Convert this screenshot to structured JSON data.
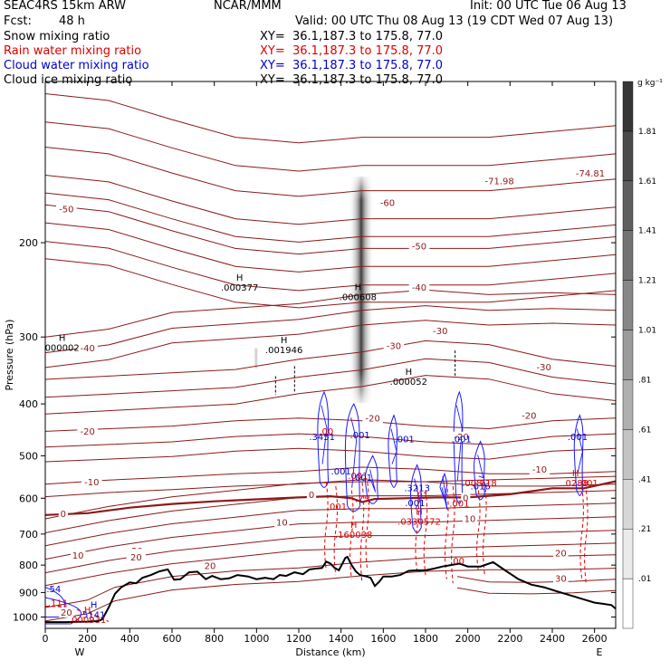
{
  "header": {
    "model": "SEAC4RS 15km ARW",
    "org": "NCAR/MMM",
    "init": "Init: 00 UTC Tue 06 Aug 13",
    "fcst_label": "Fcst:",
    "fcst_value": "48 h",
    "valid": "Valid: 00 UTC Thu 08 Aug 13 (19 CDT Wed 07 Aug 13)",
    "fields": [
      {
        "name": "Snow mixing ratio",
        "xy": "XY=  36.1,187.3 to 175.8, 77.0",
        "color": "#000000"
      },
      {
        "name": "Rain water mixing ratio",
        "xy": "XY=  36.1,187.3 to 175.8, 77.0",
        "color": "#dd0000"
      },
      {
        "name": "Cloud water mixing ratio",
        "xy": "XY=  36.1,187.3 to 175.8, 77.0",
        "color": "#0000cc"
      },
      {
        "name": "Cloud ice mixing ratio",
        "xy": "XY=  36.1,187.3 to 175.8, 77.0",
        "color": "#000000"
      }
    ]
  },
  "chart_data": {
    "type": "cross-section",
    "xlabel": "Distance (km)",
    "ylabel": "Pressure (hPa)",
    "xlim": [
      0,
      2700
    ],
    "x_ticks": [
      0,
      200,
      400,
      600,
      800,
      1000,
      1200,
      1400,
      1600,
      1800,
      2000,
      2200,
      2400,
      2600
    ],
    "ylim": [
      1050,
      100
    ],
    "y_scale": "log",
    "y_ticks": [
      200,
      300,
      400,
      500,
      600,
      700,
      800,
      900,
      1000
    ],
    "endpoint_left": "W",
    "endpoint_right": "E",
    "colorbar": {
      "unit": "g kg⁻¹",
      "levels": [
        ".01",
        ".21",
        ".41",
        ".61",
        ".81",
        "1.01",
        "1.21",
        "1.41",
        "1.61",
        "1.81"
      ]
    },
    "temperature_contours_C": [
      -50,
      -40,
      -30,
      -20,
      -10,
      0,
      10,
      20,
      30
    ],
    "temperature_labels": [
      {
        "text": "-71.98",
        "x": 2150,
        "p": 155
      },
      {
        "text": "-74.81",
        "x": 2580,
        "p": 150
      },
      {
        "text": "-50",
        "x": 100,
        "p": 175
      },
      {
        "text": "-60",
        "x": 1620,
        "p": 170
      },
      {
        "text": "-50",
        "x": 1770,
        "p": 205
      },
      {
        "text": "-40",
        "x": 1770,
        "p": 245
      },
      {
        "text": "-40",
        "x": 200,
        "p": 318
      },
      {
        "text": "-30",
        "x": 1650,
        "p": 315
      },
      {
        "text": "-30",
        "x": 1870,
        "p": 295
      },
      {
        "text": "-30",
        "x": 2360,
        "p": 345
      },
      {
        "text": "-20",
        "x": 200,
        "p": 455
      },
      {
        "text": "-20",
        "x": 1550,
        "p": 430
      },
      {
        "text": "-20",
        "x": 1970,
        "p": 465
      },
      {
        "text": "-20",
        "x": 2290,
        "p": 425
      },
      {
        "text": "-10",
        "x": 220,
        "p": 565
      },
      {
        "text": "-10",
        "x": 2340,
        "p": 535
      },
      {
        "text": "0",
        "x": 1260,
        "p": 597
      },
      {
        "text": "0",
        "x": 85,
        "p": 648
      },
      {
        "text": "0",
        "x": 1990,
        "p": 605
      },
      {
        "text": "10",
        "x": 1120,
        "p": 673
      },
      {
        "text": "10",
        "x": 2010,
        "p": 662
      },
      {
        "text": "10",
        "x": 155,
        "p": 775
      },
      {
        "text": "20",
        "x": 780,
        "p": 810
      },
      {
        "text": "20",
        "x": 435,
        "p": 758
      },
      {
        "text": "20",
        "x": 440,
        "p": 790
      },
      {
        "text": "20",
        "x": 430,
        "p": 776
      },
      {
        "text": "20",
        "x": 2440,
        "p": 768
      },
      {
        "text": "20",
        "x": 435,
        "p": 760
      },
      {
        "text": "20",
        "x": 430,
        "p": 780
      },
      {
        "text": "20",
        "x": 430,
        "p": 775
      },
      {
        "text": "20",
        "x": 430,
        "p": 772
      },
      {
        "text": "20",
        "x": 430,
        "p": 770
      },
      {
        "text": "20",
        "x": 435,
        "p": 775
      },
      {
        "text": "20",
        "x": 100,
        "p": 990
      },
      {
        "text": "30",
        "x": 2440,
        "p": 856
      },
      {
        "text": "20",
        "x": 420,
        "p": 780
      },
      {
        "text": "20",
        "x": 440,
        "p": 785
      },
      {
        "text": "20",
        "x": 430,
        "p": 783
      },
      {
        "text": "20",
        "x": 430,
        "p": 781
      }
    ],
    "extrema_labels": [
      {
        "text": ".000377",
        "x": 920,
        "p": 245,
        "color": "#000000",
        "h": true
      },
      {
        "text": ".000608",
        "x": 1480,
        "p": 255,
        "color": "#000000",
        "h": true
      },
      {
        "text": ".001946",
        "x": 1130,
        "p": 320,
        "color": "#000000",
        "h": true
      },
      {
        "text": ".000052",
        "x": 1720,
        "p": 367,
        "color": "#000000",
        "h": true
      },
      {
        "text": "000002",
        "x": 80,
        "p": 317,
        "color": "#000000",
        "h": true
      },
      {
        "text": ".3451",
        "x": 1310,
        "p": 465,
        "color": "#0000cc",
        "h": false
      },
      {
        "text": ".001",
        "x": 1490,
        "p": 462,
        "color": "#0000cc",
        "h": false
      },
      {
        "text": ".001",
        "x": 1700,
        "p": 470,
        "color": "#0000cc",
        "h": false
      },
      {
        "text": ".001",
        "x": 1970,
        "p": 470,
        "color": "#0000cc",
        "h": false
      },
      {
        "text": ".001",
        "x": 2520,
        "p": 465,
        "color": "#0000cc",
        "h": false
      },
      {
        "text": ".001",
        "x": 1400,
        "p": 540,
        "color": "#0000cc",
        "h": false
      },
      {
        "text": ".3213",
        "x": 1760,
        "p": 580,
        "color": "#0000cc",
        "h": false
      },
      {
        "text": ".001",
        "x": 1750,
        "p": 618,
        "color": "#0000cc",
        "h": false
      },
      {
        "text": ".016",
        "x": 2060,
        "p": 575,
        "color": "#0000cc",
        "h": false
      },
      {
        "text": "5141",
        "x": 230,
        "p": 1000,
        "color": "#0000cc",
        "h": true
      },
      {
        "text": ".00",
        "x": 1330,
        "p": 455,
        "color": "#dd0000",
        "h": false
      },
      {
        "text": ".001",
        "x": 1380,
        "p": 628,
        "color": "#dd0000",
        "h": false
      },
      {
        "text": ".0330572",
        "x": 1770,
        "p": 670,
        "color": "#dd0000",
        "h": true
      },
      {
        "text": ".160038",
        "x": 1460,
        "p": 708,
        "color": "#dd0000",
        "h": true
      },
      {
        "text": ".001",
        "x": 1960,
        "p": 620,
        "color": "#dd0000",
        "h": false
      },
      {
        "text": ".00",
        "x": 1950,
        "p": 793,
        "color": "#dd0000",
        "h": false
      },
      {
        "text": ".000931",
        "x": 200,
        "p": 1022,
        "color": "#dd0000",
        "h": true
      },
      {
        "text": ".118",
        "x": 2090,
        "p": 568,
        "color": "#dd0000",
        "h": false
      },
      {
        "text": ".001",
        "x": 2570,
        "p": 568,
        "color": "#dd0000",
        "h": false
      },
      {
        "text": ".008",
        "x": 2020,
        "p": 568,
        "color": "#dd0000",
        "h": false
      },
      {
        "text": ".01",
        "x": 1780,
        "p": 598,
        "color": "#dd0000",
        "h": false
      },
      {
        "text": ".75",
        "x": 1500,
        "p": 608,
        "color": "#dd0000",
        "h": false
      },
      {
        "text": ".001",
        "x": 1480,
        "p": 550,
        "color": "#dd0000",
        "h": false
      },
      {
        "text": ".111",
        "x": 60,
        "p": 950,
        "color": "#dd0000",
        "h": false
      },
      {
        "text": ".54",
        "x": 40,
        "p": 895,
        "color": "#0000cc",
        "h": false
      },
      {
        "text": ".001",
        "x": 1500,
        "p": 555,
        "color": "#0000cc",
        "h": false
      },
      {
        "text": ".0288",
        "x": 2510,
        "p": 568,
        "color": "#dd0000",
        "h": true
      }
    ],
    "terrain": {
      "x": [
        0,
        50,
        100,
        150,
        200,
        250,
        270,
        300,
        330,
        360,
        400,
        430,
        460,
        500,
        540,
        580,
        610,
        640,
        680,
        720,
        760,
        790,
        830,
        870,
        910,
        960,
        1000,
        1040,
        1080,
        1110,
        1140,
        1180,
        1220,
        1250,
        1280,
        1310,
        1330,
        1350,
        1370,
        1390,
        1410,
        1420,
        1430,
        1450,
        1470,
        1490,
        1520,
        1540,
        1560,
        1580,
        1600,
        1640,
        1680,
        1720,
        1760,
        1800,
        1840,
        1880,
        1920,
        1960,
        2000,
        2060,
        2120,
        2180,
        2240,
        2300,
        2360,
        2420,
        2480,
        2540,
        2600,
        2640,
        2680,
        2700
      ],
      "p": [
        1022,
        1022,
        1022,
        1021,
        1020,
        1018,
        1010,
        960,
        905,
        880,
        862,
        865,
        845,
        835,
        822,
        815,
        852,
        850,
        825,
        823,
        850,
        838,
        850,
        847,
        835,
        840,
        850,
        845,
        850,
        835,
        838,
        825,
        832,
        815,
        812,
        810,
        788,
        795,
        810,
        818,
        790,
        776,
        772,
        800,
        822,
        835,
        840,
        845,
        875,
        860,
        840,
        840,
        835,
        820,
        818,
        818,
        812,
        805,
        800,
        795,
        805,
        805,
        790,
        820,
        850,
        870,
        880,
        895,
        910,
        925,
        940,
        945,
        950,
        965
      ]
    }
  }
}
